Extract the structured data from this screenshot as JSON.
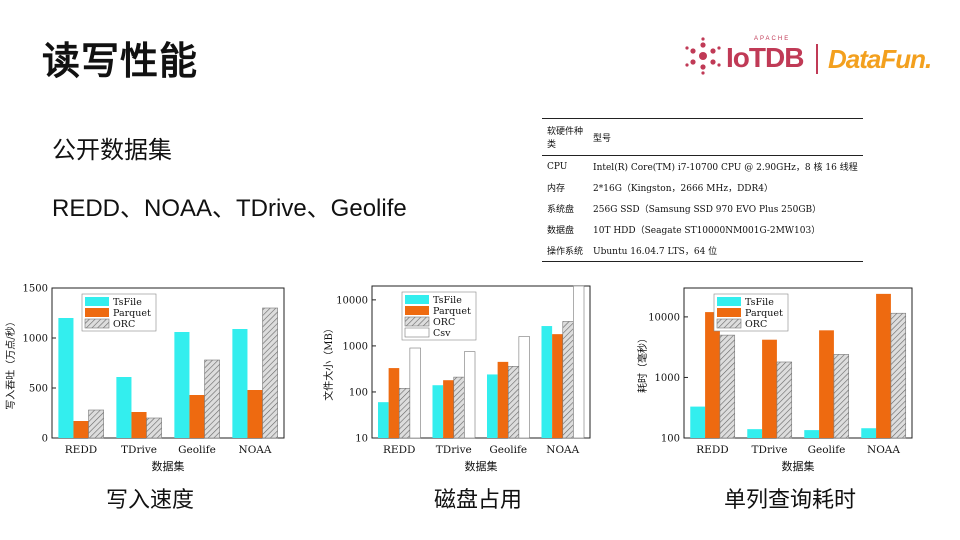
{
  "title": "读写性能",
  "logos": {
    "apache": "APACHE",
    "iotdb": "IoTDB",
    "datafun": "DataFun."
  },
  "subtitle": "公开数据集",
  "datasets": "REDD、NOAA、TDrive、Geolife",
  "hardware_table": {
    "headers": [
      "软硬件种类",
      "型号"
    ],
    "rows": [
      [
        "CPU",
        "Intel(R) Core(TM) i7-10700 CPU @ 2.90GHz，8 核 16 线程"
      ],
      [
        "内存",
        "2*16G（Kingston，2666 MHz，DDR4）"
      ],
      [
        "系统盘",
        "256G SSD（Samsung SSD 970 EVO Plus 250GB）"
      ],
      [
        "数据盘",
        "10T HDD（Seagate ST10000NM001G-2MW103）"
      ],
      [
        "操作系统",
        "Ubuntu 16.04.7 LTS，64 位"
      ]
    ]
  },
  "captions": [
    "写入速度",
    "磁盘占用",
    "单列查询耗时"
  ],
  "colors": {
    "TsFile": "#33eeee",
    "Parquet": "#ee6a10",
    "ORC": "#bbbbbb",
    "Csv": "#ffffff"
  },
  "chart_data": [
    {
      "type": "bar",
      "categories": [
        "REDD",
        "TDrive",
        "Geolife",
        "NOAA"
      ],
      "series": [
        {
          "name": "TsFile",
          "values": [
            1200,
            610,
            1060,
            1090
          ]
        },
        {
          "name": "Parquet",
          "values": [
            170,
            260,
            430,
            480
          ]
        },
        {
          "name": "ORC",
          "values": [
            280,
            200,
            780,
            1300
          ]
        }
      ],
      "xlabel": "数据集",
      "ylabel": "写入吞吐（万点/秒）",
      "ylim": [
        0,
        1500
      ],
      "yticks": [
        "0",
        "500",
        "1000",
        "1500"
      ],
      "log": false,
      "legend": "top-left"
    },
    {
      "type": "bar",
      "categories": [
        "REDD",
        "TDrive",
        "Geolife",
        "NOAA"
      ],
      "series": [
        {
          "name": "TsFile",
          "values": [
            60,
            140,
            240,
            2700
          ]
        },
        {
          "name": "Parquet",
          "values": [
            330,
            180,
            450,
            1800
          ]
        },
        {
          "name": "ORC",
          "values": [
            120,
            210,
            360,
            3400
          ]
        },
        {
          "name": "Csv",
          "values": [
            900,
            750,
            1600,
            20000
          ]
        }
      ],
      "xlabel": "数据集",
      "ylabel": "文件大小（MB）",
      "ylim": [
        10,
        20000
      ],
      "yticks": [
        "10",
        "100",
        "1000",
        "10000"
      ],
      "log": true,
      "legend": "top-left"
    },
    {
      "type": "bar",
      "categories": [
        "REDD",
        "TDrive",
        "Geolife",
        "NOAA"
      ],
      "series": [
        {
          "name": "TsFile",
          "values": [
            330,
            140,
            135,
            145
          ]
        },
        {
          "name": "Parquet",
          "values": [
            12000,
            4200,
            6000,
            24000
          ]
        },
        {
          "name": "ORC",
          "values": [
            5000,
            1800,
            2400,
            11500
          ]
        }
      ],
      "xlabel": "数据集",
      "ylabel": "耗时（毫秒）",
      "ylim": [
        100,
        30000
      ],
      "yticks": [
        "100",
        "1000",
        "10000"
      ],
      "log": true,
      "legend": "top-left"
    }
  ]
}
